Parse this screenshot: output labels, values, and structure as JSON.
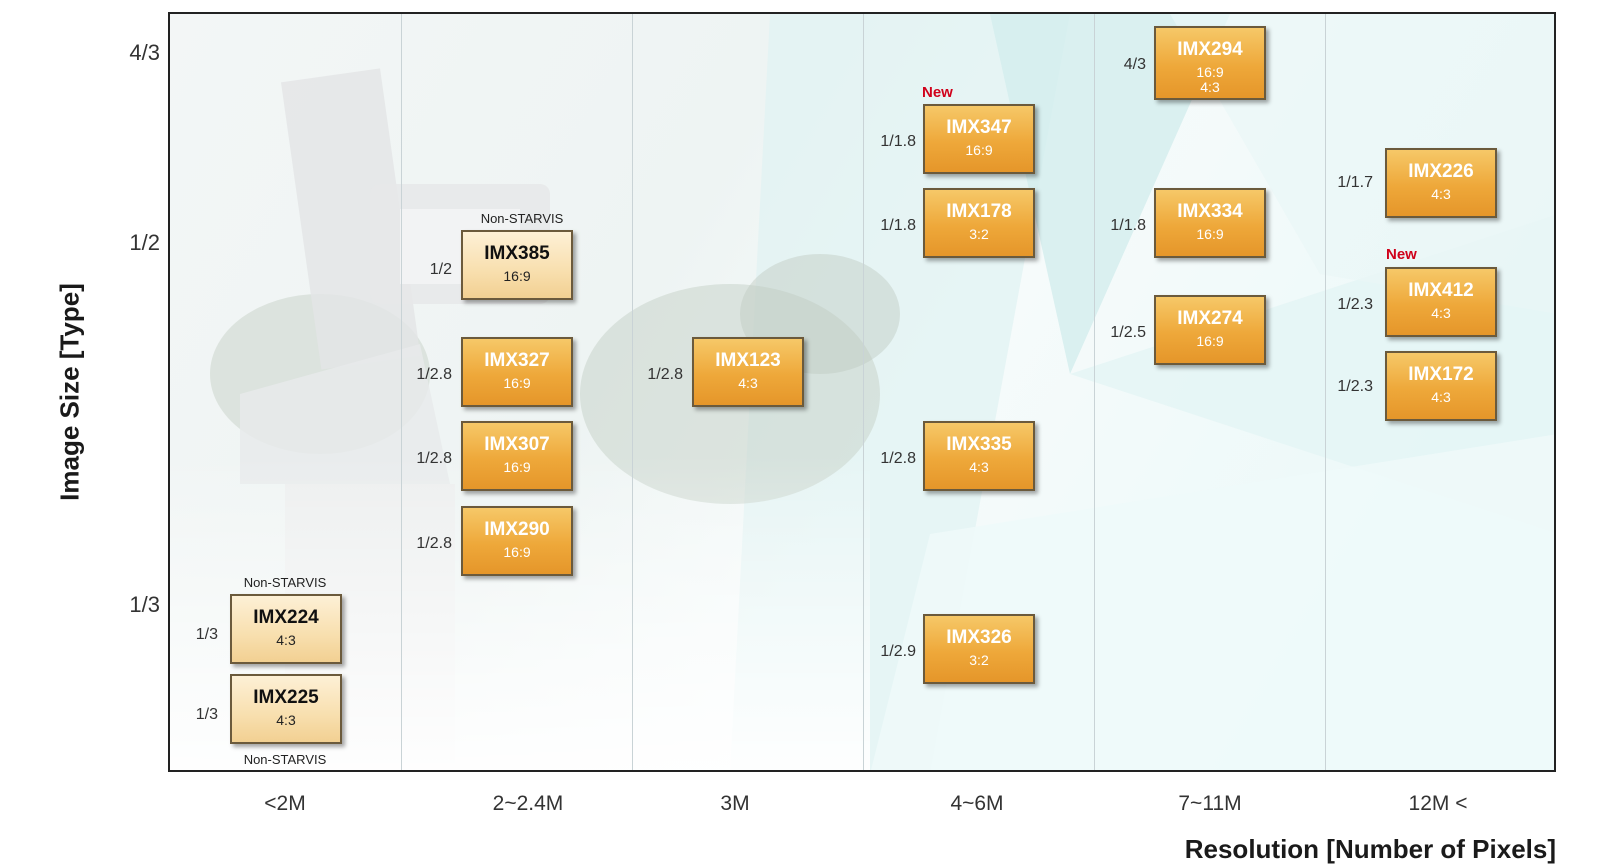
{
  "chart": {
    "y_title": "Image Size [Type]",
    "x_title": "Resolution  [Number of Pixels]",
    "y_ticks": [
      "4/3",
      "1/2",
      "1/3"
    ],
    "x_categories": [
      "<2M",
      "2~2.4M",
      "3M",
      "4~6M",
      "7~11M",
      "12M <"
    ]
  },
  "sensors": [
    {
      "name": "IMX224",
      "ratio": "4:3",
      "size": "1/3",
      "note_above": "Non-STARVIS",
      "style": "light",
      "category": "<2M"
    },
    {
      "name": "IMX225",
      "ratio": "4:3",
      "size": "1/3",
      "note_below": "Non-STARVIS",
      "style": "light",
      "category": "<2M"
    },
    {
      "name": "IMX385",
      "ratio": "16:9",
      "size": "1/2",
      "note_above": "Non-STARVIS",
      "style": "light",
      "category": "2~2.4M"
    },
    {
      "name": "IMX327",
      "ratio": "16:9",
      "size": "1/2.8",
      "category": "2~2.4M"
    },
    {
      "name": "IMX307",
      "ratio": "16:9",
      "size": "1/2.8",
      "category": "2~2.4M"
    },
    {
      "name": "IMX290",
      "ratio": "16:9",
      "size": "1/2.8",
      "category": "2~2.4M"
    },
    {
      "name": "IMX123",
      "ratio": "4:3",
      "size": "1/2.8",
      "category": "3M"
    },
    {
      "name": "IMX347",
      "ratio": "16:9",
      "size": "1/1.8",
      "badge": "New",
      "category": "4~6M"
    },
    {
      "name": "IMX178",
      "ratio": "3:2",
      "size": "1/1.8",
      "category": "4~6M"
    },
    {
      "name": "IMX335",
      "ratio": "4:3",
      "size": "1/2.8",
      "category": "4~6M"
    },
    {
      "name": "IMX326",
      "ratio": "3:2",
      "size": "1/2.9",
      "category": "4~6M"
    },
    {
      "name": "IMX294",
      "ratio": "16:9",
      "ratio2": "4:3",
      "size": "4/3",
      "category": "7~11M"
    },
    {
      "name": "IMX334",
      "ratio": "16:9",
      "size": "1/1.8",
      "category": "7~11M"
    },
    {
      "name": "IMX274",
      "ratio": "16:9",
      "size": "1/2.5",
      "category": "7~11M"
    },
    {
      "name": "IMX226",
      "ratio": "4:3",
      "size": "1/1.7",
      "category": "12M <"
    },
    {
      "name": "IMX412",
      "ratio": "4:3",
      "size": "1/2.3",
      "badge": "New",
      "category": "12M <"
    },
    {
      "name": "IMX172",
      "ratio": "4:3",
      "size": "1/2.3",
      "category": "12M <"
    }
  ]
}
